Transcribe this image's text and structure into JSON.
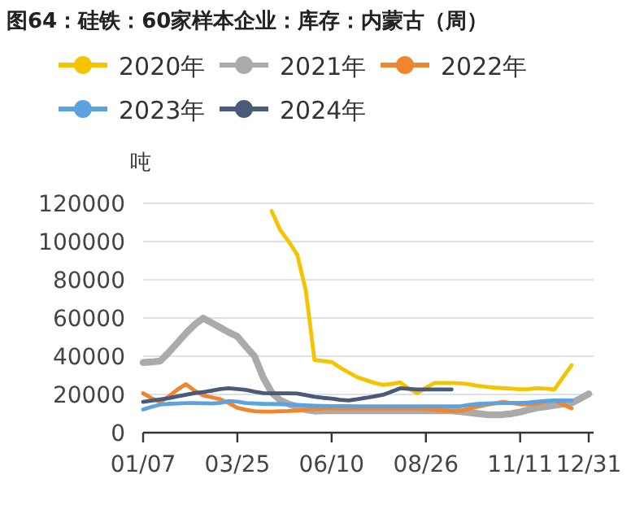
{
  "chart_data": {
    "type": "line",
    "title": "图64：硅铁：60家样本企业：库存：内蒙古（周）",
    "ylabel": "吨",
    "categories": [
      "01/07",
      null,
      null,
      null,
      null,
      null,
      null,
      null,
      null,
      null,
      null,
      "03/25",
      null,
      null,
      null,
      null,
      null,
      null,
      null,
      null,
      null,
      null,
      "06/10",
      null,
      null,
      null,
      null,
      null,
      null,
      null,
      null,
      null,
      null,
      "08/26",
      null,
      null,
      null,
      null,
      null,
      null,
      null,
      null,
      null,
      null,
      "11/11",
      null,
      null,
      null,
      null,
      null,
      null,
      null,
      "12/31"
    ],
    "ylim": [
      0,
      120000
    ],
    "yticks": [
      0,
      20000,
      40000,
      60000,
      80000,
      100000,
      120000
    ],
    "grid": "y",
    "legend": "top",
    "marker": "none",
    "line_style": "solid",
    "series": [
      {
        "name": "2020年",
        "color": "#f5c400",
        "values": [
          null,
          null,
          null,
          null,
          null,
          null,
          null,
          null,
          null,
          null,
          null,
          null,
          null,
          null,
          null,
          116000,
          106000,
          100000,
          93000,
          74000,
          38000,
          37500,
          37000,
          34000,
          31500,
          29000,
          27500,
          26000,
          25000,
          25500,
          26300,
          23000,
          20600,
          23500,
          26000,
          26000,
          26000,
          25800,
          25400,
          24500,
          24000,
          23600,
          23300,
          23000,
          22700,
          22800,
          23200,
          23000,
          22600,
          29000,
          35300,
          null,
          null
        ]
      },
      {
        "name": "2021年",
        "color": "#aaaaaa",
        "values": [
          36700,
          37000,
          37500,
          42000,
          47000,
          52000,
          56500,
          59900,
          57500,
          55000,
          52500,
          50300,
          45000,
          40000,
          29000,
          21000,
          17000,
          15000,
          13500,
          12000,
          11300,
          11500,
          11500,
          11500,
          11500,
          11500,
          11500,
          11500,
          11500,
          11500,
          11500,
          11500,
          11500,
          11500,
          11500,
          11500,
          11500,
          11000,
          10500,
          10000,
          9500,
          9300,
          9500,
          9900,
          10800,
          12000,
          13000,
          13600,
          14300,
          15000,
          15500,
          17800,
          20300
        ]
      },
      {
        "name": "2022年",
        "color": "#f0852d",
        "values": [
          20600,
          18000,
          16000,
          19000,
          22500,
          25400,
          22000,
          19500,
          18500,
          17500,
          15500,
          13000,
          12000,
          11200,
          11000,
          11000,
          11200,
          11300,
          11600,
          12000,
          12300,
          12600,
          12700,
          12700,
          12700,
          12700,
          12700,
          12700,
          12700,
          12700,
          12700,
          12700,
          12700,
          12500,
          12000,
          11600,
          11300,
          11300,
          12500,
          13500,
          14500,
          15300,
          16100,
          15500,
          14900,
          14700,
          15300,
          16200,
          16900,
          14800,
          12700,
          null,
          null
        ]
      },
      {
        "name": "2023年",
        "color": "#5ba3e0",
        "values": [
          12100,
          13500,
          14700,
          15100,
          15300,
          15500,
          15500,
          15400,
          15300,
          15600,
          16500,
          16200,
          15500,
          15300,
          15100,
          15000,
          14900,
          14700,
          14500,
          14300,
          14100,
          14000,
          13900,
          13900,
          13900,
          13800,
          13800,
          13800,
          13800,
          13800,
          13800,
          13800,
          13800,
          13800,
          13800,
          13800,
          13800,
          13800,
          14500,
          15000,
          15300,
          15400,
          15500,
          15500,
          15600,
          15800,
          16200,
          16600,
          16900,
          16900,
          16900,
          null,
          null
        ]
      },
      {
        "name": "2024年",
        "color": "#4a5a78",
        "values": [
          16100,
          16800,
          17400,
          18000,
          19000,
          19800,
          20700,
          21200,
          22000,
          22800,
          23200,
          22800,
          22400,
          21400,
          20700,
          20600,
          20600,
          20600,
          20500,
          19600,
          18800,
          18200,
          17800,
          17200,
          16900,
          17500,
          18200,
          19000,
          19800,
          21500,
          23200,
          22900,
          22600,
          22600,
          22600,
          22600,
          22600,
          null,
          null,
          null,
          null,
          null,
          null,
          null,
          null,
          null,
          null,
          null,
          null,
          null,
          null,
          null,
          null
        ]
      }
    ]
  }
}
